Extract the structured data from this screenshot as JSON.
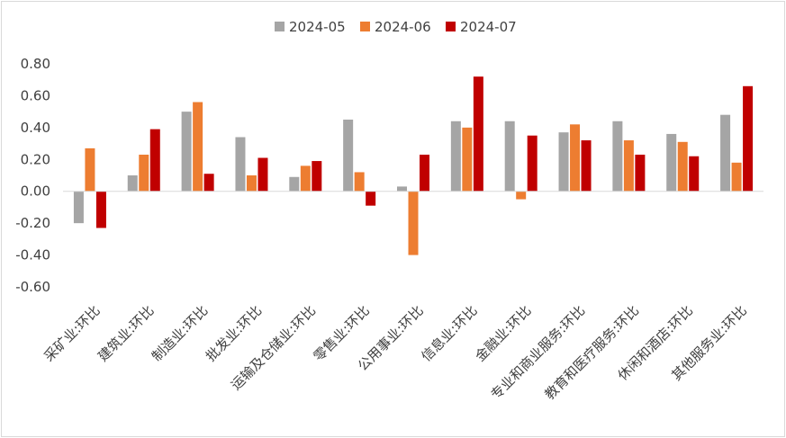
{
  "chart_data": {
    "type": "bar",
    "title": "",
    "xlabel": "",
    "ylabel": "",
    "ylim": [
      -0.6,
      0.8
    ],
    "yticks": [
      "0.80",
      "0.60",
      "0.40",
      "0.20",
      "0.00",
      "-0.20",
      "-0.40",
      "-0.60"
    ],
    "ytick_values": [
      0.8,
      0.6,
      0.4,
      0.2,
      0.0,
      -0.2,
      -0.4,
      -0.6
    ],
    "grid": false,
    "legend_position": "top",
    "categories": [
      "采矿业:环比",
      "建筑业:环比",
      "制造业:环比",
      "批发业:环比",
      "运输及仓储业:环比",
      "零售业:环比",
      "公用事业:环比",
      "信息业:环比",
      "金融业:环比",
      "专业和商业服务:环比",
      "教育和医疗服务:环比",
      "休闲和酒店:环比",
      "其他服务业:环比"
    ],
    "series": [
      {
        "name": "2024-05",
        "color": "#a5a5a5",
        "values": [
          -0.2,
          0.1,
          0.5,
          0.34,
          0.09,
          0.45,
          0.03,
          0.44,
          0.44,
          0.37,
          0.44,
          0.36,
          0.48
        ]
      },
      {
        "name": "2024-06",
        "color": "#ed7d31",
        "values": [
          0.27,
          0.23,
          0.56,
          0.1,
          0.16,
          0.12,
          -0.4,
          0.4,
          -0.05,
          0.42,
          0.32,
          0.31,
          0.18
        ]
      },
      {
        "name": "2024-07",
        "color": "#c00000",
        "values": [
          -0.23,
          0.39,
          0.11,
          0.21,
          0.19,
          -0.09,
          0.23,
          0.72,
          0.35,
          0.32,
          0.23,
          0.22,
          0.66
        ]
      }
    ]
  }
}
